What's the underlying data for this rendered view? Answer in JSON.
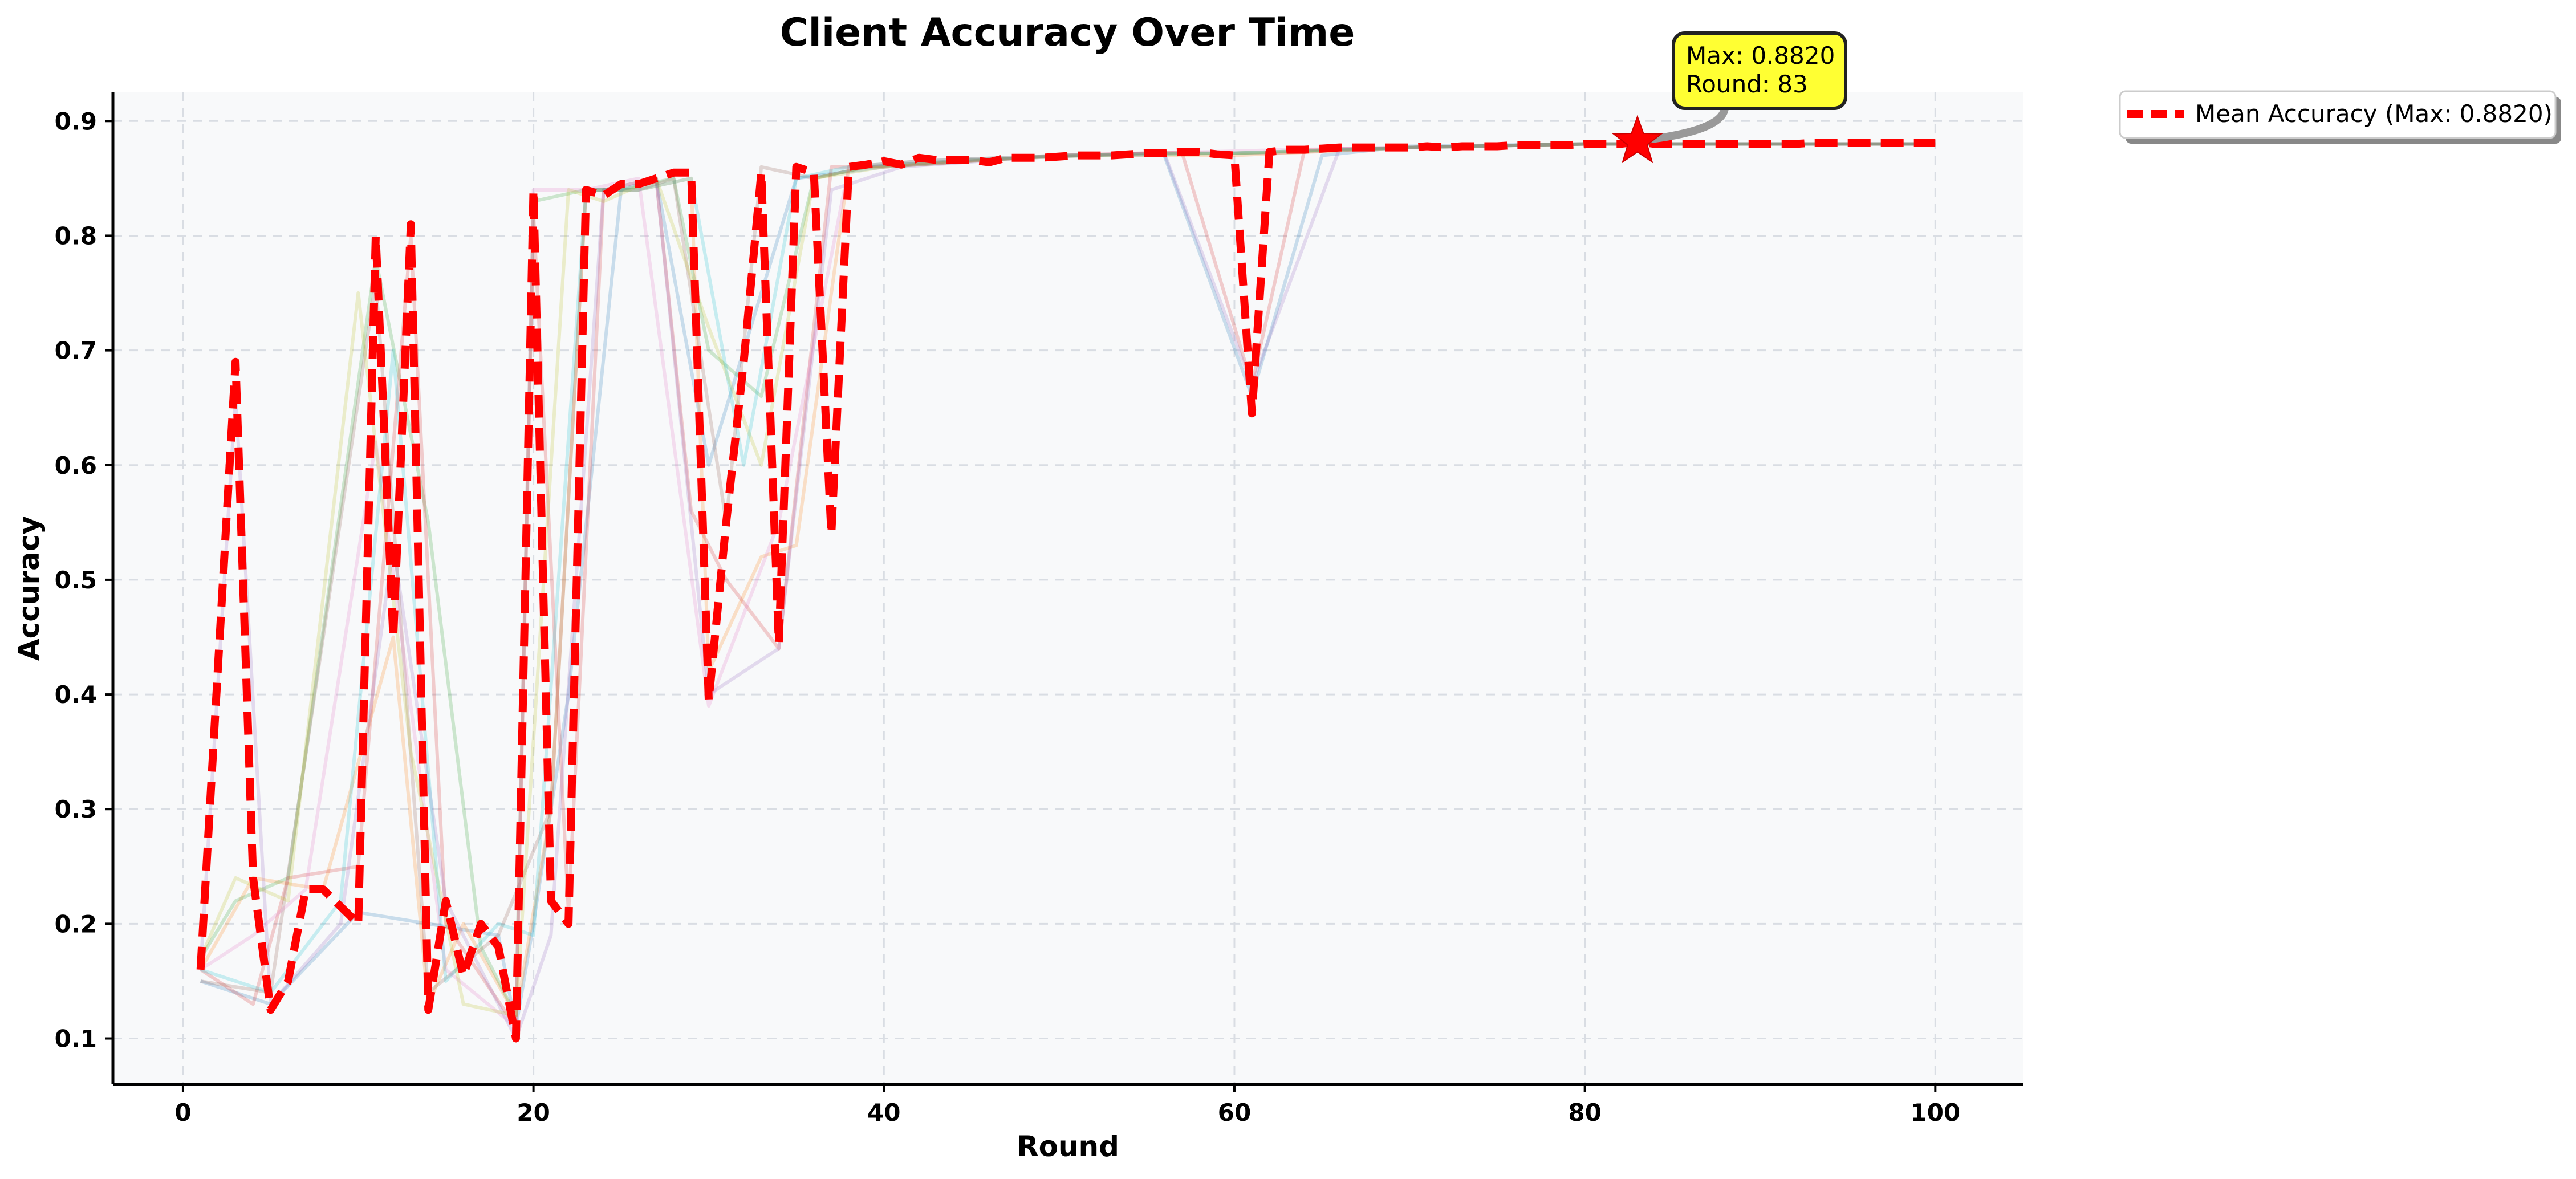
{
  "chart_data": {
    "type": "line",
    "title": "Client Accuracy Over Time",
    "xlabel": "Round",
    "ylabel": "Accuracy",
    "xlim": [
      -4,
      105
    ],
    "ylim": [
      0.06,
      0.925
    ],
    "xticks": [
      0,
      20,
      40,
      60,
      80,
      100
    ],
    "xtick_labels": [
      "0",
      "20",
      "40",
      "60",
      "80",
      "100"
    ],
    "yticks": [
      0.1,
      0.2,
      0.3,
      0.4,
      0.5,
      0.6,
      0.7,
      0.8,
      0.9
    ],
    "ytick_labels": [
      "0.1",
      "0.2",
      "0.3",
      "0.4",
      "0.5",
      "0.6",
      "0.7",
      "0.8",
      "0.9"
    ],
    "grid": true,
    "legend_placement": "outside-top-right",
    "colors": {
      "mean": "#ff0000",
      "plot_bg": "#f8f9fa",
      "grid": "#d9dde3",
      "annotation_bg": "#ffff33",
      "annotation_border": "#222222"
    },
    "series": [
      {
        "name": "Mean Accuracy (Max: 0.8820)",
        "style": "dashed",
        "x": [
          1,
          3,
          4,
          5,
          6,
          7,
          8,
          9,
          10,
          11,
          12,
          13,
          14,
          15,
          16,
          17,
          18,
          19,
          20,
          21,
          22,
          23,
          24,
          25,
          26,
          27,
          28,
          29,
          30,
          31,
          32,
          33,
          34,
          35,
          36,
          37,
          38,
          39,
          40,
          41,
          42,
          43,
          44,
          45,
          46,
          47,
          48,
          49,
          50,
          51,
          52,
          53,
          54,
          55,
          56,
          57,
          58,
          59,
          60,
          61,
          62,
          63,
          64,
          65,
          66,
          67,
          68,
          69,
          70,
          71,
          72,
          73,
          74,
          75,
          76,
          77,
          78,
          79,
          80,
          81,
          82,
          83,
          84,
          85,
          86,
          87,
          88,
          89,
          90,
          91,
          92,
          93,
          94,
          95,
          96,
          97,
          98,
          99,
          100
        ],
        "y": [
          0.16,
          0.69,
          0.24,
          0.125,
          0.15,
          0.23,
          0.23,
          0.215,
          0.2,
          0.8,
          0.45,
          0.81,
          0.125,
          0.22,
          0.155,
          0.2,
          0.18,
          0.1,
          0.84,
          0.22,
          0.2,
          0.84,
          0.835,
          0.845,
          0.845,
          0.85,
          0.855,
          0.855,
          0.395,
          0.55,
          0.69,
          0.855,
          0.445,
          0.86,
          0.855,
          0.54,
          0.86,
          0.862,
          0.865,
          0.862,
          0.868,
          0.866,
          0.866,
          0.866,
          0.864,
          0.868,
          0.868,
          0.868,
          0.869,
          0.87,
          0.87,
          0.87,
          0.871,
          0.872,
          0.872,
          0.873,
          0.873,
          0.871,
          0.87,
          0.645,
          0.873,
          0.875,
          0.875,
          0.876,
          0.877,
          0.877,
          0.877,
          0.877,
          0.877,
          0.878,
          0.877,
          0.878,
          0.878,
          0.878,
          0.879,
          0.879,
          0.879,
          0.879,
          0.88,
          0.88,
          0.88,
          0.882,
          0.88,
          0.88,
          0.88,
          0.88,
          0.88,
          0.88,
          0.88,
          0.88,
          0.88,
          0.881,
          0.881,
          0.881,
          0.881,
          0.881,
          0.881,
          0.881,
          0.881
        ]
      },
      {
        "color": "#1f77b4",
        "x": [
          1,
          5,
          10,
          18,
          19,
          20,
          22,
          25,
          27,
          30,
          35,
          40,
          50,
          56,
          61,
          65,
          70,
          80,
          90,
          100
        ],
        "y": [
          0.15,
          0.13,
          0.21,
          0.19,
          0.11,
          0.2,
          0.4,
          0.84,
          0.85,
          0.6,
          0.85,
          0.86,
          0.87,
          0.87,
          0.66,
          0.87,
          0.878,
          0.88,
          0.88,
          0.88
        ]
      },
      {
        "color": "#ff7f0e",
        "x": [
          1,
          4,
          8,
          12,
          14,
          16,
          19,
          21,
          23,
          26,
          29,
          30,
          33,
          35,
          38,
          42,
          50,
          60,
          70,
          80,
          90,
          100
        ],
        "y": [
          0.16,
          0.24,
          0.23,
          0.45,
          0.13,
          0.2,
          0.12,
          0.3,
          0.84,
          0.84,
          0.85,
          0.42,
          0.52,
          0.53,
          0.86,
          0.865,
          0.87,
          0.87,
          0.877,
          0.88,
          0.88,
          0.88
        ]
      },
      {
        "color": "#2ca02c",
        "x": [
          1,
          3,
          6,
          11,
          14,
          17,
          19,
          20,
          23,
          25,
          28,
          30,
          33,
          36,
          39,
          45,
          55,
          60,
          70,
          80,
          90,
          100
        ],
        "y": [
          0.17,
          0.22,
          0.24,
          0.78,
          0.55,
          0.18,
          0.12,
          0.83,
          0.84,
          0.84,
          0.85,
          0.7,
          0.66,
          0.85,
          0.86,
          0.866,
          0.872,
          0.872,
          0.877,
          0.88,
          0.88,
          0.88
        ]
      },
      {
        "color": "#d62728",
        "x": [
          1,
          4,
          6,
          10,
          13,
          15,
          19,
          20,
          22,
          24,
          27,
          29,
          31,
          34,
          37,
          40,
          50,
          57,
          61,
          64,
          70,
          80,
          90,
          100
        ],
        "y": [
          0.16,
          0.13,
          0.24,
          0.25,
          0.8,
          0.2,
          0.11,
          0.82,
          0.21,
          0.84,
          0.85,
          0.56,
          0.5,
          0.44,
          0.86,
          0.86,
          0.87,
          0.873,
          0.67,
          0.875,
          0.877,
          0.88,
          0.88,
          0.88
        ]
      },
      {
        "color": "#9467bd",
        "x": [
          1,
          3,
          5,
          9,
          12,
          15,
          19,
          21,
          24,
          27,
          30,
          34,
          37,
          41,
          50,
          56,
          61,
          66,
          70,
          80,
          90,
          100
        ],
        "y": [
          0.16,
          0.66,
          0.13,
          0.2,
          0.53,
          0.22,
          0.1,
          0.19,
          0.84,
          0.85,
          0.4,
          0.44,
          0.84,
          0.86,
          0.87,
          0.872,
          0.67,
          0.876,
          0.877,
          0.88,
          0.88,
          0.88
        ]
      },
      {
        "color": "#8c564b",
        "x": [
          1,
          5,
          11,
          14,
          18,
          21,
          23,
          26,
          28,
          31,
          33,
          36,
          39,
          45,
          55,
          62,
          70,
          80,
          90,
          100
        ],
        "y": [
          0.15,
          0.14,
          0.76,
          0.14,
          0.19,
          0.3,
          0.84,
          0.84,
          0.85,
          0.55,
          0.86,
          0.85,
          0.86,
          0.866,
          0.872,
          0.872,
          0.877,
          0.88,
          0.88,
          0.88
        ]
      },
      {
        "color": "#e377c2",
        "x": [
          1,
          4,
          7,
          11,
          15,
          19,
          20,
          23,
          26,
          30,
          34,
          38,
          42,
          50,
          58,
          63,
          70,
          80,
          90,
          100
        ],
        "y": [
          0.16,
          0.19,
          0.23,
          0.62,
          0.16,
          0.11,
          0.84,
          0.84,
          0.85,
          0.39,
          0.55,
          0.86,
          0.865,
          0.87,
          0.873,
          0.875,
          0.877,
          0.88,
          0.88,
          0.88
        ]
      },
      {
        "color": "#bcbd22",
        "x": [
          1,
          3,
          6,
          10,
          13,
          16,
          19,
          22,
          24,
          27,
          30,
          33,
          36,
          40,
          50,
          60,
          70,
          80,
          90,
          100
        ],
        "y": [
          0.17,
          0.24,
          0.22,
          0.75,
          0.35,
          0.13,
          0.12,
          0.84,
          0.83,
          0.85,
          0.72,
          0.6,
          0.85,
          0.86,
          0.87,
          0.872,
          0.877,
          0.88,
          0.88,
          0.88
        ]
      },
      {
        "color": "#17becf",
        "x": [
          1,
          5,
          9,
          12,
          15,
          18,
          20,
          23,
          26,
          29,
          32,
          35,
          38,
          42,
          50,
          60,
          70,
          80,
          90,
          100
        ],
        "y": [
          0.16,
          0.14,
          0.22,
          0.7,
          0.15,
          0.2,
          0.19,
          0.84,
          0.84,
          0.85,
          0.6,
          0.85,
          0.86,
          0.865,
          0.87,
          0.872,
          0.877,
          0.88,
          0.88,
          0.88
        ]
      }
    ],
    "annotations": [
      {
        "text_lines": [
          "Max: 0.8820",
          "Round: 83"
        ],
        "x": 83,
        "y": 0.882,
        "marker": "star"
      }
    ]
  }
}
